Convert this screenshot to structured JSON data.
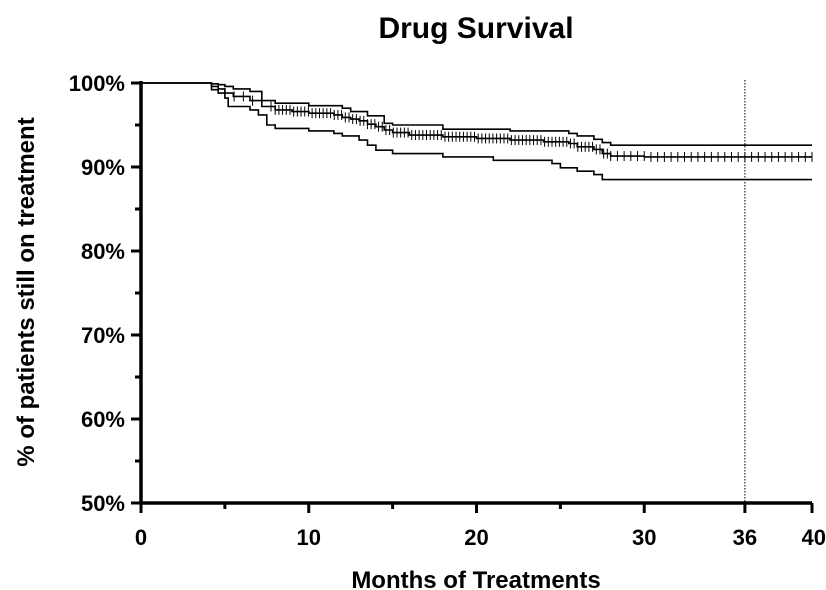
{
  "chart_data": {
    "type": "line",
    "title": "Drug Survival",
    "xlabel": "Months of Treatments",
    "ylabel": "% of patients still on treatment",
    "xlim": [
      0,
      40
    ],
    "ylim": [
      50,
      100
    ],
    "x_ticks": [
      0,
      10,
      20,
      30,
      36,
      40
    ],
    "x_tick_labels": [
      "0",
      "10",
      "20",
      "30",
      "36",
      "40"
    ],
    "y_ticks": [
      50,
      60,
      70,
      80,
      90,
      100
    ],
    "y_tick_labels": [
      "50%",
      "60%",
      "70%",
      "80%",
      "90%",
      "100%"
    ],
    "reference_line_x": 36,
    "grid": false,
    "series": [
      {
        "role": "estimate",
        "censor_marks": true,
        "x": [
          0,
          3.8,
          4.2,
          4.6,
          5.0,
          5.5,
          6.5,
          7.2,
          8.0,
          9.0,
          10.0,
          11.5,
          12.0,
          12.5,
          13.0,
          13.5,
          14.0,
          14.5,
          15.0,
          16.0,
          18.0,
          20.0,
          22.0,
          24.0,
          25.5,
          26.0,
          27.0,
          27.5,
          28.0,
          30.0,
          33.0,
          36.0,
          40.0
        ],
        "y": [
          100,
          100,
          99.6,
          99.3,
          98.8,
          98.4,
          97.9,
          97.2,
          96.8,
          96.6,
          96.4,
          96.2,
          95.9,
          95.7,
          95.5,
          95.1,
          94.8,
          94.4,
          94.1,
          93.8,
          93.6,
          93.4,
          93.2,
          93.0,
          92.8,
          92.4,
          92.1,
          91.6,
          91.3,
          91.2,
          91.2,
          91.2,
          91.2
        ]
      },
      {
        "role": "upper-ci",
        "x": [
          0,
          3.8,
          4.2,
          4.6,
          5.0,
          5.5,
          6.5,
          7.2,
          8.0,
          10.0,
          12.0,
          12.5,
          13.5,
          14.5,
          15.0,
          18.0,
          22.0,
          25.5,
          26.0,
          27.0,
          27.5,
          28.0,
          40.0
        ],
        "y": [
          100,
          100,
          99.9,
          99.8,
          99.6,
          99.3,
          99.0,
          97.9,
          97.6,
          97.3,
          97.0,
          96.6,
          96.1,
          95.2,
          95.0,
          94.5,
          94.3,
          94.0,
          93.7,
          93.3,
          92.9,
          92.6,
          92.6
        ]
      },
      {
        "role": "lower-ci",
        "x": [
          0,
          3.8,
          4.2,
          4.6,
          5.0,
          5.2,
          6.5,
          7.0,
          7.5,
          8.0,
          10.0,
          11.5,
          12.0,
          13.0,
          13.5,
          14.0,
          15.0,
          18.0,
          21.0,
          24.5,
          25.0,
          26.0,
          27.0,
          27.5,
          40.0
        ],
        "y": [
          100,
          100,
          99.2,
          98.8,
          98.2,
          97.2,
          96.8,
          96.2,
          95.0,
          94.6,
          94.3,
          94.0,
          93.7,
          93.2,
          92.6,
          92.0,
          91.6,
          91.2,
          90.8,
          90.4,
          89.9,
          89.5,
          89.1,
          88.5,
          88.5
        ]
      }
    ]
  }
}
